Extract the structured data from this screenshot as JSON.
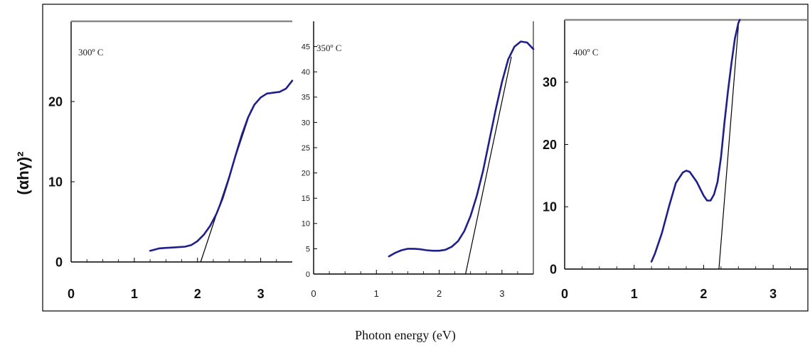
{
  "figure": {
    "xlabel": "Photon energy (eV)",
    "ylabel": "(αhγ)²"
  },
  "chart_data": [
    {
      "type": "line",
      "annotation": "300º C",
      "xlim": [
        0,
        3.5
      ],
      "ylim": [
        0,
        30
      ],
      "xticks": [
        "0",
        "1",
        "2",
        "3"
      ],
      "yticks": [
        "0",
        "10",
        "20"
      ],
      "series": [
        {
          "color": "#1f1f8c",
          "x": [
            1.25,
            1.3,
            1.4,
            1.5,
            1.6,
            1.7,
            1.8,
            1.9,
            2.0,
            2.1,
            2.2,
            2.3,
            2.4,
            2.5,
            2.6,
            2.7,
            2.8,
            2.9,
            3.0,
            3.1,
            3.2,
            3.3,
            3.4,
            3.5
          ],
          "y": [
            1.4,
            1.5,
            1.7,
            1.75,
            1.8,
            1.85,
            1.9,
            2.1,
            2.6,
            3.4,
            4.5,
            6.0,
            8.0,
            10.5,
            13.2,
            15.8,
            18.0,
            19.6,
            20.5,
            21.0,
            21.1,
            21.2,
            21.6,
            22.6
          ]
        }
      ],
      "fit_line": {
        "x": [
          2.05,
          2.85
        ],
        "y": [
          0,
          19.0
        ]
      }
    },
    {
      "type": "line",
      "annotation": "350º C",
      "xlim": [
        0,
        3.5
      ],
      "ylim": [
        0,
        50
      ],
      "xticks": [
        "0",
        "1",
        "2",
        "3"
      ],
      "yticks": [
        "0",
        "5",
        "10",
        "15",
        "20",
        "25",
        "30",
        "35",
        "40",
        "45"
      ],
      "series": [
        {
          "color": "#1f1f8c",
          "x": [
            1.2,
            1.3,
            1.4,
            1.5,
            1.6,
            1.7,
            1.8,
            1.9,
            2.0,
            2.1,
            2.2,
            2.3,
            2.4,
            2.5,
            2.6,
            2.7,
            2.8,
            2.9,
            3.0,
            3.1,
            3.2,
            3.3,
            3.4,
            3.5
          ],
          "y": [
            3.5,
            4.2,
            4.7,
            5.0,
            5.0,
            4.9,
            4.7,
            4.6,
            4.6,
            4.8,
            5.4,
            6.5,
            8.5,
            11.5,
            15.5,
            20.5,
            26.5,
            32.5,
            38.0,
            42.5,
            45.0,
            46.0,
            45.8,
            44.5
          ]
        }
      ],
      "fit_line": {
        "x": [
          2.42,
          3.15
        ],
        "y": [
          0,
          43.0
        ]
      }
    },
    {
      "type": "line",
      "annotation": "400º C",
      "xlim": [
        0,
        3.5
      ],
      "ylim": [
        0,
        40
      ],
      "xticks": [
        "0",
        "1",
        "2",
        "3"
      ],
      "yticks": [
        "0",
        "10",
        "20",
        "30"
      ],
      "series": [
        {
          "color": "#1f1f8c",
          "x": [
            1.25,
            1.3,
            1.4,
            1.5,
            1.6,
            1.7,
            1.75,
            1.8,
            1.9,
            2.0,
            2.05,
            2.1,
            2.15,
            2.2,
            2.25,
            2.3,
            2.35,
            2.4,
            2.45,
            2.5,
            2.52
          ],
          "y": [
            1.2,
            2.5,
            5.8,
            10.0,
            13.8,
            15.5,
            15.8,
            15.6,
            14.0,
            11.8,
            11.0,
            11.0,
            12.0,
            14.0,
            18.0,
            23.5,
            28.5,
            33.0,
            37.0,
            39.5,
            40.0
          ]
        }
      ],
      "fit_line": {
        "x": [
          2.22,
          2.5
        ],
        "y": [
          0,
          39.0
        ]
      }
    }
  ]
}
